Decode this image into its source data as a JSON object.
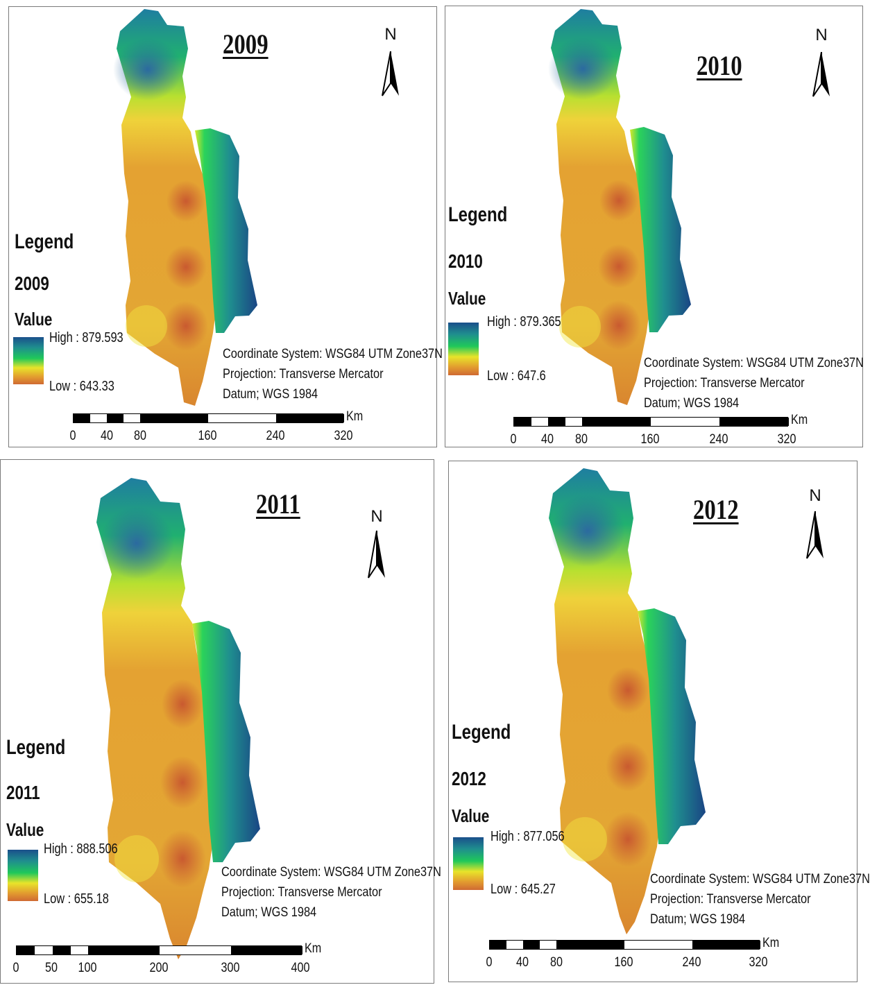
{
  "panels": [
    {
      "year": "2009",
      "legend": {
        "title": "Legend",
        "year": "2009",
        "value_label": "Value",
        "high": "High : 879.593",
        "low": "Low : 643.33"
      },
      "north": "N",
      "info": {
        "coord": "Coordinate System: WSG84 UTM Zone37N",
        "proj": "Projection: Transverse Mercator",
        "datum": "Datum; WGS 1984"
      },
      "scale": {
        "unit": "Km",
        "ticks": [
          "0",
          "40",
          "80",
          "160",
          "240",
          "320"
        ]
      }
    },
    {
      "year": "2010",
      "legend": {
        "title": "Legend",
        "year": "2010",
        "value_label": "Value",
        "high": "High : 879.365",
        "low": "Low : 647.6"
      },
      "north": "N",
      "info": {
        "coord": "Coordinate System: WSG84 UTM Zone37N",
        "proj": "Projection: Transverse Mercator",
        "datum": "Datum; WGS 1984"
      },
      "scale": {
        "unit": "Km",
        "ticks": [
          "0",
          "40",
          "80",
          "160",
          "240",
          "320"
        ]
      }
    },
    {
      "year": "2011",
      "legend": {
        "title": "Legend",
        "year": "2011",
        "value_label": "Value",
        "high": "High : 888.506",
        "low": "Low : 655.18"
      },
      "north": "N",
      "info": {
        "coord": "Coordinate System: WSG84 UTM Zone37N",
        "proj": "Projection: Transverse Mercator",
        "datum": "Datum; WGS 1984"
      },
      "scale": {
        "unit": "Km",
        "ticks": [
          "0",
          "50",
          "100",
          "200",
          "300",
          "400"
        ]
      }
    },
    {
      "year": "2012",
      "legend": {
        "title": "Legend",
        "year": "2012",
        "value_label": "Value",
        "high": "High : 877.056",
        "low": "Low : 645.27"
      },
      "north": "N",
      "info": {
        "coord": "Coordinate System: WSG84 UTM Zone37N",
        "proj": "Projection: Transverse Mercator",
        "datum": "Datum; WGS 1984"
      },
      "scale": {
        "unit": "Km",
        "ticks": [
          "0",
          "40",
          "80",
          "160",
          "240",
          "320"
        ]
      }
    }
  ],
  "colors": {
    "high": "#1a4f8b",
    "mid_green": "#1fc85a",
    "mid_yellow": "#e8e42a",
    "low": "#cf6a33"
  }
}
